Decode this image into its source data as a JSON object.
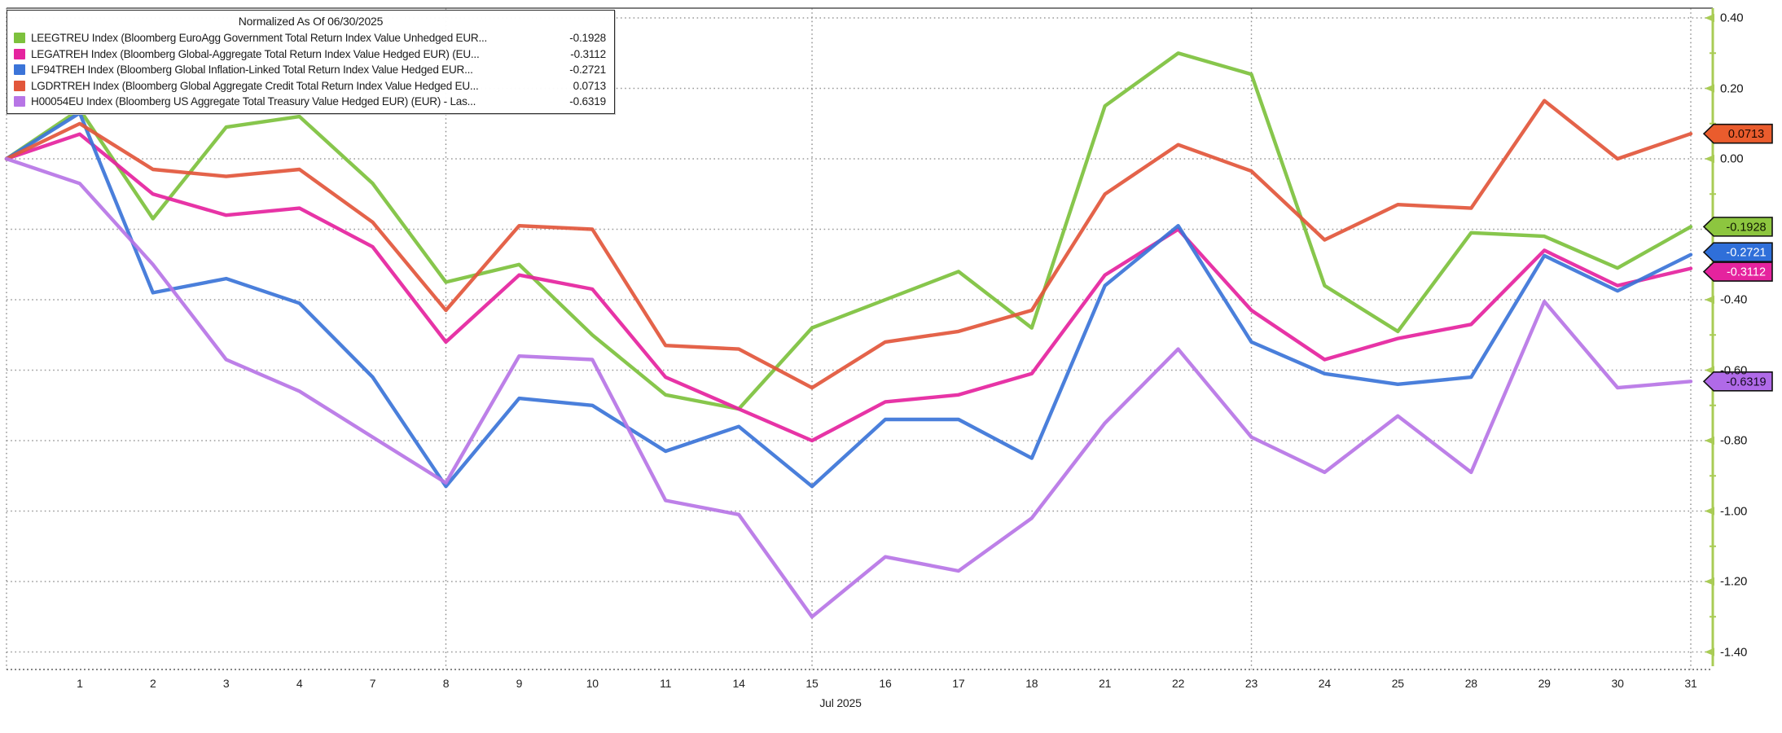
{
  "legend": {
    "title": "Normalized As Of 06/30/2025",
    "items": [
      {
        "id": "LEEGTREU",
        "label": "LEEGTREU Index (Bloomberg EuroAgg Government Total Return Index Value Unhedged EUR...",
        "value": "-0.1928",
        "color": "#7dc13d"
      },
      {
        "id": "LEGATREH",
        "label": "LEGATREH Index (Bloomberg Global-Aggregate Total Return Index Value Hedged EUR) (EU...",
        "value": "-0.3112",
        "color": "#e5239e"
      },
      {
        "id": "LF94TREH",
        "label": "LF94TREH Index (Bloomberg Global Inflation-Linked Total Return Index Value Hedged EUR...",
        "value": "-0.2721",
        "color": "#3b74d8"
      },
      {
        "id": "LGDRTREH",
        "label": "LGDRTREH Index (Bloomberg Global Aggregate Credit Total Return Index Value Hedged EU...",
        "value": "0.0713",
        "color": "#e2563b"
      },
      {
        "id": "H00054EU",
        "label": "H00054EU Index (Bloomberg US Aggregate Total Treasury Value Hedged EUR) (EUR) - Las...",
        "value": "-0.6319",
        "color": "#b775e6"
      }
    ]
  },
  "chart_data": {
    "type": "line",
    "title": "Normalized As Of 06/30/2025",
    "xlabel": "Jul 2025",
    "ylabel": "",
    "ylim": [
      -1.45,
      0.43
    ],
    "grid": true,
    "legend_position": "top-left",
    "categories": [
      "",
      "1",
      "2",
      "3",
      "4",
      "7",
      "8",
      "9",
      "10",
      "11",
      "14",
      "15",
      "16",
      "17",
      "18",
      "21",
      "22",
      "23",
      "24",
      "25",
      "28",
      "29",
      "30",
      "31"
    ],
    "grid_x_indices": [
      0,
      6,
      11,
      17,
      23
    ],
    "series": [
      {
        "name": "LEEGTREU Index",
        "color": "#7dc13d",
        "values": [
          0,
          0.14,
          -0.17,
          0.09,
          0.12,
          -0.07,
          -0.35,
          -0.3,
          -0.5,
          -0.67,
          -0.71,
          -0.48,
          -0.4,
          -0.32,
          -0.48,
          0.15,
          0.3,
          0.24,
          -0.36,
          -0.49,
          -0.21,
          -0.22,
          -0.31,
          -0.1928
        ]
      },
      {
        "name": "LEGATREH Index",
        "color": "#e5239e",
        "values": [
          0,
          0.07,
          -0.1,
          -0.16,
          -0.14,
          -0.25,
          -0.52,
          -0.33,
          -0.37,
          -0.62,
          -0.71,
          -0.8,
          -0.69,
          -0.67,
          -0.61,
          -0.33,
          -0.2,
          -0.43,
          -0.57,
          -0.51,
          -0.47,
          -0.26,
          -0.36,
          -0.3112
        ]
      },
      {
        "name": "LF94TREH Index",
        "color": "#3b74d8",
        "values": [
          0,
          0.13,
          -0.38,
          -0.34,
          -0.41,
          -0.62,
          -0.93,
          -0.68,
          -0.7,
          -0.83,
          -0.76,
          -0.93,
          -0.74,
          -0.74,
          -0.85,
          -0.36,
          -0.19,
          -0.52,
          -0.61,
          -0.64,
          -0.62,
          -0.275,
          -0.375,
          -0.2721
        ]
      },
      {
        "name": "LGDRTREH Index",
        "color": "#e2563b",
        "values": [
          0,
          0.1,
          -0.03,
          -0.05,
          -0.03,
          -0.18,
          -0.43,
          -0.19,
          -0.2,
          -0.53,
          -0.54,
          -0.65,
          -0.52,
          -0.49,
          -0.43,
          -0.1,
          0.04,
          -0.035,
          -0.23,
          -0.13,
          -0.14,
          0.165,
          0.0,
          0.0713
        ]
      },
      {
        "name": "H00054EU Index",
        "color": "#b775e6",
        "values": [
          0,
          -0.07,
          -0.3,
          -0.57,
          -0.66,
          -0.79,
          -0.92,
          -0.56,
          -0.57,
          -0.97,
          -1.01,
          -1.3,
          -1.13,
          -1.17,
          -1.02,
          -0.75,
          -0.54,
          -0.79,
          -0.89,
          -0.73,
          -0.89,
          -0.405,
          -0.65,
          -0.6319
        ]
      }
    ]
  },
  "axis": {
    "month_label": "Jul 2025",
    "y_ticks": [
      {
        "label": "0.40",
        "value": 0.4
      },
      {
        "label": "0.20",
        "value": 0.2
      },
      {
        "label": "0.00",
        "value": 0.0
      },
      {
        "label": "",
        "value": -0.2
      },
      {
        "label": "-0.40",
        "value": -0.4
      },
      {
        "label": "-0.60",
        "value": -0.6
      },
      {
        "label": "-0.80",
        "value": -0.8
      },
      {
        "label": "-1.00",
        "value": -1.0
      },
      {
        "label": "-1.20",
        "value": -1.2
      },
      {
        "label": "-1.40",
        "value": -1.4
      }
    ],
    "badges": [
      {
        "text": "0.0713",
        "value": 0.0713,
        "color": "#ea5c2d",
        "text_color": "#1d0800",
        "dy": 0
      },
      {
        "text": "-0.1928",
        "value": -0.1928,
        "color": "#8dc63f",
        "text_color": "#101800",
        "dy": 0
      },
      {
        "text": "-0.2721",
        "value": -0.2721,
        "color": "#2f6fd9",
        "text_color": "#ffffff",
        "dy": -3
      },
      {
        "text": "-0.3112",
        "value": -0.3112,
        "color": "#e5239e",
        "text_color": "#ffffff",
        "dy": 4
      },
      {
        "text": "-0.6319",
        "value": -0.6319,
        "color": "#b06ae8",
        "text_color": "#140a20",
        "dy": 0
      }
    ],
    "colors": {
      "axis_line": "#a9cc55",
      "gridline": "#9a9a9a",
      "baseline": "#606060"
    }
  }
}
